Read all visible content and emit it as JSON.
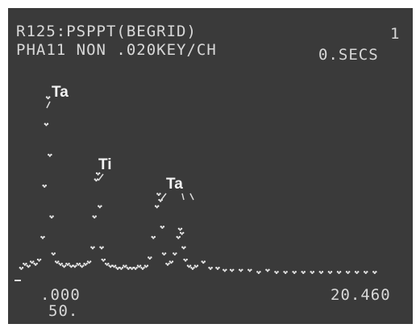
{
  "chart_data": {
    "type": "scatter",
    "title": "R125:PSPPT(BEGRID)",
    "subtitle": "PHA11 NON .020KEY/CH",
    "screen_labels": [
      "1",
      "0.SECS",
      "50."
    ],
    "annotations": [
      "Ta",
      "Ti",
      "Ta"
    ],
    "color": "#e8e8e8",
    "xlim": [
      0,
      20.46
    ],
    "xticks": [
      {
        "value": 0,
        "label": ".000"
      },
      {
        "value": 20.46,
        "label": "20.460"
      }
    ],
    "ylim": [
      0,
      100
    ],
    "x": [
      0.2,
      0.4,
      0.6,
      0.8,
      1.0,
      1.2,
      1.4,
      1.5,
      1.6,
      1.7,
      1.8,
      1.9,
      2.0,
      2.2,
      2.4,
      2.6,
      2.8,
      3.0,
      3.2,
      3.4,
      3.6,
      3.8,
      4.0,
      4.2,
      4.3,
      4.4,
      4.5,
      4.6,
      4.7,
      4.8,
      5.0,
      5.2,
      5.4,
      5.6,
      5.8,
      6.0,
      6.2,
      6.4,
      6.6,
      6.8,
      7.0,
      7.2,
      7.4,
      7.6,
      7.8,
      7.9,
      8.0,
      8.1,
      8.2,
      8.4,
      8.6,
      8.8,
      9.0,
      9.1,
      9.2,
      9.3,
      9.4,
      9.6,
      9.8,
      10.0,
      10.4,
      10.8,
      11.2,
      11.6,
      12.0,
      12.5,
      13.0,
      13.5,
      14.0,
      14.5,
      15.0,
      15.5,
      16.0,
      16.5,
      17.0,
      17.5,
      18.0,
      18.5,
      19.0,
      19.5,
      20.0
    ],
    "values": [
      5,
      7,
      6,
      8,
      7,
      9,
      20,
      45,
      75,
      88,
      60,
      30,
      12,
      8,
      7,
      6,
      7,
      6,
      6,
      7,
      6,
      7,
      8,
      15,
      30,
      48,
      51,
      35,
      15,
      9,
      7,
      6,
      6,
      5,
      5,
      6,
      5,
      5,
      5,
      6,
      5,
      6,
      10,
      20,
      35,
      41,
      38,
      25,
      12,
      7,
      8,
      12,
      20,
      24,
      22,
      15,
      9,
      6,
      5,
      6,
      8,
      5,
      5,
      4,
      4,
      4,
      4,
      3,
      4,
      3,
      3,
      3,
      3,
      3,
      3,
      3,
      3,
      3,
      3,
      3,
      3
    ]
  }
}
